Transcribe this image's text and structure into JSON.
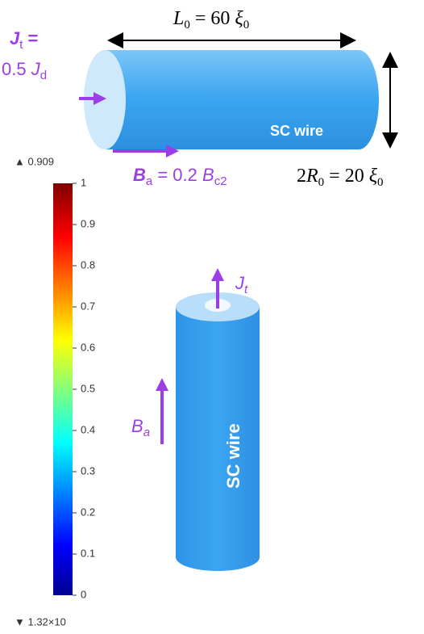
{
  "length_label": [
    "L",
    "0",
    " = 60 ",
    "ξ",
    "0"
  ],
  "radius_label": [
    "2",
    "R",
    "0",
    " = 20 ",
    "ξ",
    "0"
  ],
  "current_label": [
    "J",
    "t",
    " =",
    "0.5 ",
    "J",
    "d"
  ],
  "field_label": [
    "B",
    "a",
    " = 0.2 ",
    "B",
    "c2"
  ],
  "wire_top": "SC wire",
  "wire_side": "SC wire",
  "side_current": [
    "J",
    "t"
  ],
  "side_field": [
    "B",
    "a"
  ],
  "colorbar": {
    "max_label": "▲ 0.909",
    "min_label": "▼ 1.32×10",
    "range": [
      0,
      1
    ],
    "ticks": [
      1,
      0.9,
      0.8,
      0.7,
      0.6,
      0.5,
      0.4,
      0.3,
      0.2,
      0.1,
      0
    ]
  }
}
